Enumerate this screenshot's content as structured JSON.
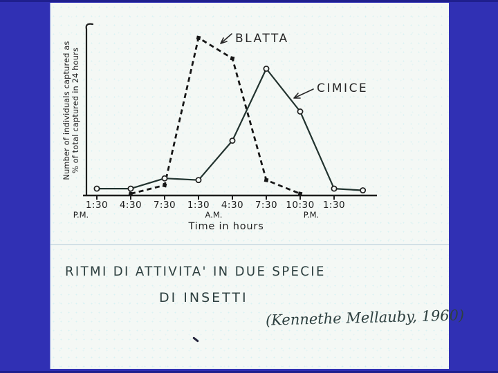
{
  "colors": {
    "background": "#3030b4",
    "background_edge": "#1f1f8e",
    "paper": "#f4f8f5",
    "ink": "#1d1d1d",
    "handwriting_ink": "#2e4040"
  },
  "chart_data": {
    "type": "line",
    "title": "",
    "xlabel": "Time in hours",
    "ylabel": "Number of individuals captured as % of total captured in 24 hours",
    "ylabel_lines": [
      "Number of individuals captured as",
      "% of total captured in 24 hours"
    ],
    "x_tick_labels": [
      "1:30",
      "4:30",
      "7:30",
      "1:30",
      "4:30",
      "7:30",
      "10:30",
      "1:30"
    ],
    "x_period_labels": [
      "P.M.",
      "A.M.",
      "P.M."
    ],
    "y_tick_labels": [],
    "ylim": [
      0,
      100
    ],
    "y_units_note": "y-axis has no printed tick values; series values estimated as percent of full plot height",
    "grid": false,
    "legend": "inline handwritten labels with arrows",
    "series": [
      {
        "name": "BLATTA",
        "line_style": "dashed",
        "marker": "filled-square",
        "points_tick_value": [
          [
            1,
            1
          ],
          [
            2,
            6
          ],
          [
            3,
            92
          ],
          [
            4,
            80
          ],
          [
            5,
            9
          ],
          [
            6,
            1
          ]
        ]
      },
      {
        "name": "CIMICE",
        "line_style": "solid",
        "marker": "open-circle",
        "points_tick_value": [
          [
            0,
            4
          ],
          [
            1,
            4
          ],
          [
            2,
            10
          ],
          [
            3,
            9
          ],
          [
            4,
            32
          ],
          [
            5,
            74
          ],
          [
            6,
            49
          ],
          [
            7,
            4
          ],
          [
            7.85,
            3
          ]
        ]
      }
    ]
  },
  "caption": {
    "line1": "RITMI DI ATTIVITA' IN DUE SPECIE",
    "line2": "DI INSETTI",
    "line3": "(Kennethe Mellauby, 1960)"
  }
}
